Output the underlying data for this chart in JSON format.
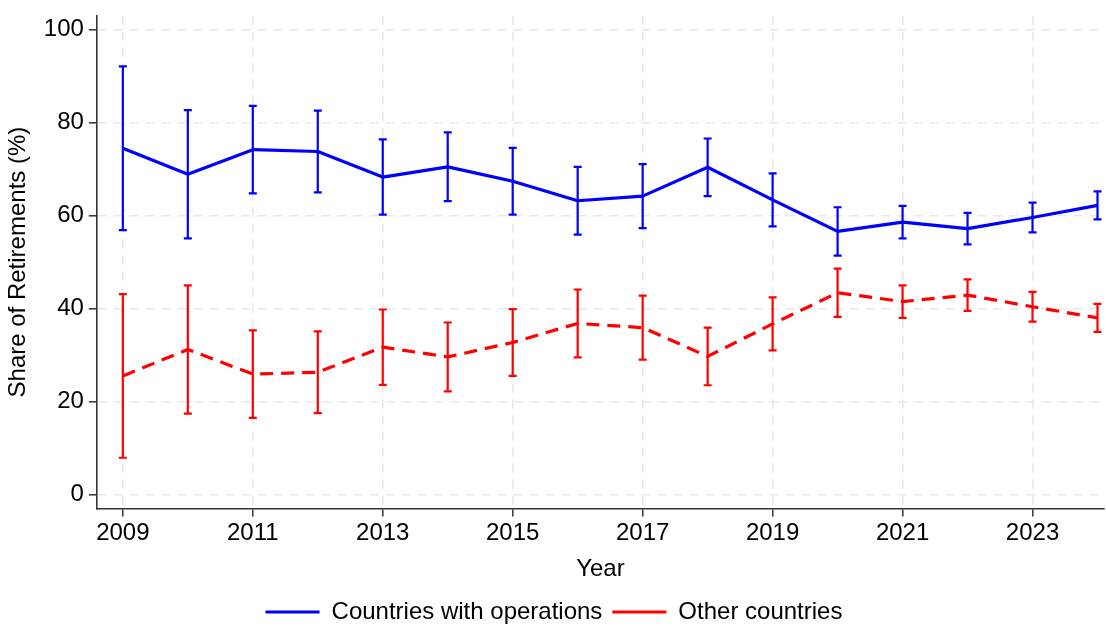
{
  "chart_data": {
    "type": "line",
    "xlabel": "Year",
    "ylabel": "Share of Retirements (%)",
    "x": [
      2009,
      2010,
      2011,
      2012,
      2013,
      2014,
      2015,
      2016,
      2017,
      2018,
      2019,
      2020,
      2021,
      2022,
      2023,
      2024
    ],
    "series": [
      {
        "name": "Countries with operations",
        "color": "#0000ff",
        "line_style": "solid",
        "values": [
          74.5,
          68.9,
          74.2,
          73.8,
          68.3,
          70.5,
          67.4,
          63.2,
          64.2,
          70.4,
          63.4,
          56.6,
          58.6,
          57.2,
          59.6,
          62.2
        ],
        "errors": [
          17.6,
          13.8,
          9.4,
          8.8,
          8.1,
          7.4,
          7.2,
          7.3,
          6.9,
          6.2,
          5.7,
          5.2,
          3.5,
          3.4,
          3.2,
          3.0
        ]
      },
      {
        "name": "Other countries",
        "color": "#ff0000",
        "line_style": "dashed",
        "values": [
          25.5,
          31.2,
          25.9,
          26.3,
          31.7,
          29.6,
          32.7,
          36.8,
          35.9,
          29.7,
          36.7,
          43.4,
          41.5,
          42.9,
          40.4,
          38.0
        ],
        "errors": [
          17.6,
          13.8,
          9.4,
          8.8,
          8.1,
          7.4,
          7.2,
          7.3,
          6.9,
          6.2,
          5.7,
          5.2,
          3.5,
          3.4,
          3.2,
          3.0
        ]
      }
    ],
    "xlim": [
      2008.6,
      2024.1
    ],
    "xticks": [
      2009,
      2011,
      2013,
      2015,
      2017,
      2019,
      2021,
      2023
    ],
    "ylim": [
      -3,
      103
    ],
    "yticks": [
      0,
      20,
      40,
      60,
      80,
      100
    ],
    "grid": true,
    "legend": "bottom",
    "marker": "none"
  }
}
